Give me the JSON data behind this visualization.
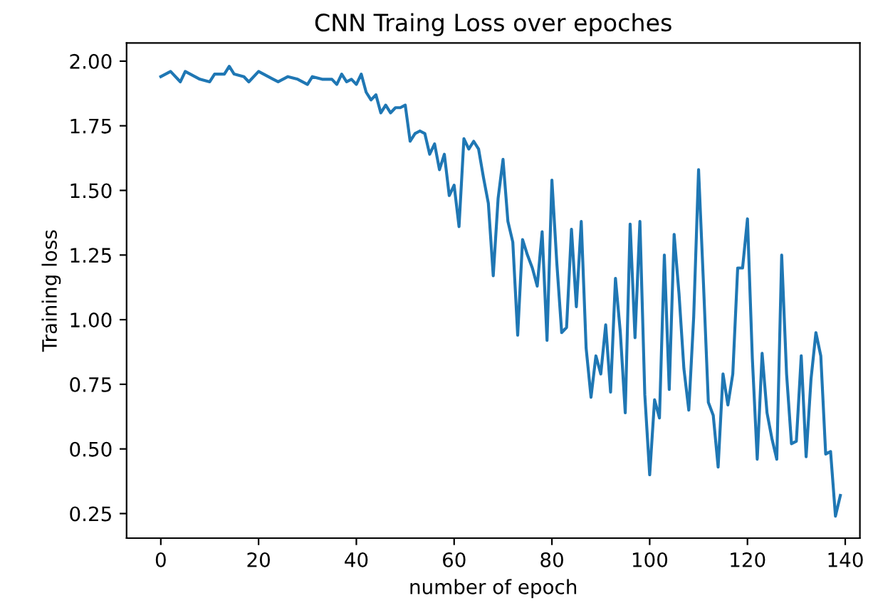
{
  "chart_data": {
    "type": "line",
    "title": "CNN Traing Loss over epoches",
    "xlabel": "number of epoch",
    "ylabel": "Training loss",
    "xlim": [
      -7,
      143
    ],
    "xticks": [
      0,
      20,
      40,
      60,
      80,
      100,
      120,
      140
    ],
    "ylim": [
      0.155,
      2.07
    ],
    "yticks": [
      {
        "value": 0.25,
        "label": "0.25"
      },
      {
        "value": 0.5,
        "label": "0.50"
      },
      {
        "value": 0.75,
        "label": "0.75"
      },
      {
        "value": 1.0,
        "label": "1.00"
      },
      {
        "value": 1.25,
        "label": "1.25"
      },
      {
        "value": 1.5,
        "label": "1.50"
      },
      {
        "value": 1.75,
        "label": "1.75"
      },
      {
        "value": 2.0,
        "label": "2.00"
      }
    ],
    "grid": false,
    "legend": false,
    "series": [
      {
        "color": "#1f77b4",
        "x": [
          0,
          2,
          4,
          5,
          8,
          10,
          11,
          13,
          14,
          15,
          17,
          18,
          20,
          23,
          24,
          26,
          28,
          30,
          31,
          33,
          35,
          36,
          37,
          38,
          39,
          40,
          41,
          42,
          43,
          44,
          45,
          46,
          47,
          48,
          49,
          50,
          51,
          52,
          53,
          54,
          55,
          56,
          57,
          58,
          59,
          60,
          61,
          62,
          63,
          64,
          65,
          66,
          67,
          68,
          69,
          70,
          71,
          72,
          73,
          74,
          75,
          76,
          77,
          78,
          79,
          80,
          81,
          82,
          83,
          84,
          85,
          86,
          87,
          88,
          89,
          90,
          91,
          92,
          93,
          94,
          95,
          96,
          97,
          98,
          99,
          100,
          101,
          102,
          103,
          104,
          105,
          106,
          107,
          108,
          109,
          110,
          111,
          112,
          113,
          114,
          115,
          116,
          117,
          118,
          119,
          120,
          121,
          122,
          123,
          124,
          125,
          126,
          127,
          128,
          129,
          130,
          131,
          132,
          133,
          134,
          135,
          136,
          137,
          138,
          139
        ],
        "values": [
          1.94,
          1.96,
          1.92,
          1.96,
          1.93,
          1.92,
          1.95,
          1.95,
          1.98,
          1.95,
          1.94,
          1.92,
          1.96,
          1.93,
          1.92,
          1.94,
          1.93,
          1.91,
          1.94,
          1.93,
          1.93,
          1.91,
          1.95,
          1.92,
          1.93,
          1.91,
          1.95,
          1.88,
          1.85,
          1.87,
          1.8,
          1.83,
          1.8,
          1.82,
          1.82,
          1.83,
          1.69,
          1.72,
          1.73,
          1.72,
          1.64,
          1.68,
          1.58,
          1.64,
          1.48,
          1.52,
          1.36,
          1.7,
          1.66,
          1.69,
          1.66,
          1.55,
          1.45,
          1.17,
          1.47,
          1.62,
          1.38,
          1.3,
          0.94,
          1.31,
          1.25,
          1.2,
          1.13,
          1.34,
          0.92,
          1.54,
          1.22,
          0.95,
          0.97,
          1.35,
          1.05,
          1.38,
          0.89,
          0.7,
          0.86,
          0.79,
          0.98,
          0.72,
          1.16,
          0.95,
          0.64,
          1.37,
          0.93,
          1.38,
          0.71,
          0.4,
          0.69,
          0.62,
          1.25,
          0.73,
          1.33,
          1.1,
          0.81,
          0.65,
          1.01,
          1.58,
          1.14,
          0.68,
          0.63,
          0.43,
          0.79,
          0.67,
          0.79,
          1.2,
          1.2,
          1.39,
          0.85,
          0.46,
          0.87,
          0.64,
          0.54,
          0.46,
          1.25,
          0.79,
          0.52,
          0.53,
          0.86,
          0.47,
          0.77,
          0.95,
          0.86,
          0.48,
          0.49,
          0.24,
          0.32
        ]
      }
    ]
  }
}
